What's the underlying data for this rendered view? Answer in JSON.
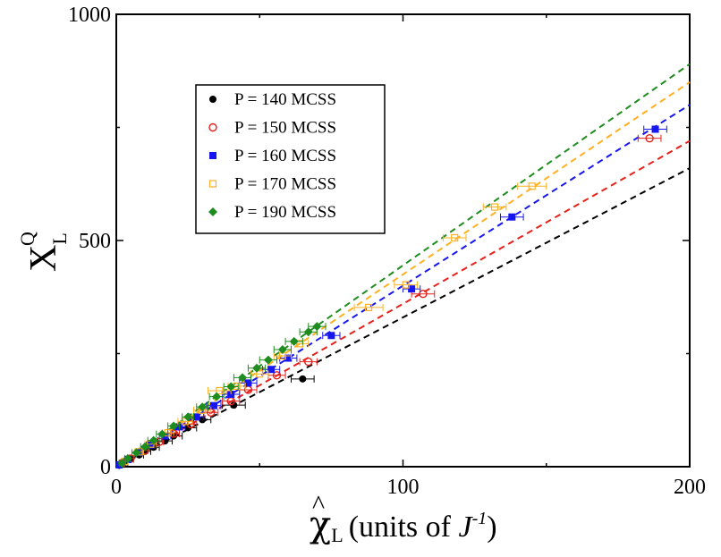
{
  "chart_data": {
    "type": "scatter",
    "title": "",
    "xlabel": {
      "symbol": "χ",
      "hat": "^",
      "subscript": "L",
      "units_prefix": "(units of ",
      "units_var": "J",
      "units_exp": "-1",
      "units_suffix": ")"
    },
    "ylabel": {
      "symbol": "X",
      "subscript": "L",
      "superscript": "Q"
    },
    "xlim": [
      0,
      200
    ],
    "ylim": [
      0,
      1000
    ],
    "xticks": [
      0,
      100,
      200
    ],
    "yticks": [
      0,
      500,
      1000
    ],
    "xticklabels": [
      "0",
      "100",
      "200"
    ],
    "yticklabels": [
      "0",
      "500",
      "1000"
    ],
    "legend_position": "upper-left",
    "series": [
      {
        "name": "P = 140 MCSS",
        "color": "#000000",
        "marker": "circle-filled",
        "fit_slope": 3.3,
        "points": [
          [
            1,
            3,
            0
          ],
          [
            3,
            10,
            1
          ],
          [
            5,
            17,
            1
          ],
          [
            8,
            26,
            1.5
          ],
          [
            10,
            34,
            2
          ],
          [
            13,
            43,
            2
          ],
          [
            17,
            57,
            2.5
          ],
          [
            20,
            68,
            3
          ],
          [
            25,
            86,
            3
          ],
          [
            30,
            104,
            3
          ],
          [
            41,
            136,
            4
          ],
          [
            65,
            194,
            4
          ]
        ]
      },
      {
        "name": "P = 150 MCSS",
        "color": "#e8201a",
        "marker": "circle-open",
        "fit_slope": 3.6,
        "points": [
          [
            2,
            8,
            0.5
          ],
          [
            5,
            18,
            1
          ],
          [
            10,
            36,
            1
          ],
          [
            15,
            55,
            1.5
          ],
          [
            20,
            73,
            2
          ],
          [
            26,
            94,
            2
          ],
          [
            33,
            120,
            2.5
          ],
          [
            40,
            145,
            3
          ],
          [
            46,
            170,
            3
          ],
          [
            56,
            202,
            3
          ],
          [
            67,
            232,
            3
          ],
          [
            107,
            382,
            4
          ],
          [
            186,
            726,
            4
          ]
        ]
      },
      {
        "name": "P = 160 MCSS",
        "color": "#1616f0",
        "marker": "square-filled",
        "fit_slope": 4.0,
        "points": [
          [
            1,
            4,
            0.5
          ],
          [
            4,
            16,
            1
          ],
          [
            8,
            32,
            1
          ],
          [
            12,
            48,
            1.5
          ],
          [
            17,
            68,
            2
          ],
          [
            22,
            88,
            2
          ],
          [
            28,
            110,
            2.5
          ],
          [
            34,
            135,
            2.5
          ],
          [
            40,
            160,
            3
          ],
          [
            46,
            185,
            3
          ],
          [
            54,
            215,
            3
          ],
          [
            60,
            240,
            3
          ],
          [
            75,
            290,
            3
          ],
          [
            103,
            393,
            3
          ],
          [
            138,
            552,
            4
          ],
          [
            188,
            746,
            4
          ]
        ]
      },
      {
        "name": "P = 170 MCSS",
        "color": "#ffb020",
        "marker": "square-open",
        "fit_slope": 4.25,
        "points": [
          [
            3,
            12,
            1
          ],
          [
            8,
            33,
            1.5
          ],
          [
            12,
            50,
            2
          ],
          [
            18,
            75,
            2
          ],
          [
            24,
            100,
            2.5
          ],
          [
            30,
            125,
            3
          ],
          [
            36,
            168,
            4
          ],
          [
            42,
            178,
            3
          ],
          [
            50,
            205,
            3
          ],
          [
            58,
            245,
            3
          ],
          [
            64,
            272,
            3
          ],
          [
            88,
            352,
            5
          ],
          [
            101,
            402,
            4
          ],
          [
            118,
            506,
            4
          ],
          [
            132,
            574,
            4
          ],
          [
            145,
            620,
            5
          ]
        ]
      },
      {
        "name": "P = 190 MCSS",
        "color": "#1e8c1e",
        "marker": "diamond-filled",
        "fit_slope": 4.45,
        "points": [
          [
            2,
            8,
            1
          ],
          [
            4,
            18,
            1
          ],
          [
            7,
            31,
            1.5
          ],
          [
            10,
            44,
            1.5
          ],
          [
            13,
            58,
            2
          ],
          [
            16,
            72,
            2
          ],
          [
            20,
            90,
            2
          ],
          [
            25,
            110,
            2
          ],
          [
            30,
            132,
            2
          ],
          [
            35,
            155,
            2.5
          ],
          [
            40,
            177,
            2.5
          ],
          [
            44,
            197,
            3
          ],
          [
            49,
            218,
            3
          ],
          [
            53,
            236,
            3
          ],
          [
            58,
            259,
            3
          ],
          [
            62,
            277,
            3
          ],
          [
            67,
            298,
            3
          ],
          [
            70,
            310,
            3
          ]
        ]
      }
    ]
  }
}
